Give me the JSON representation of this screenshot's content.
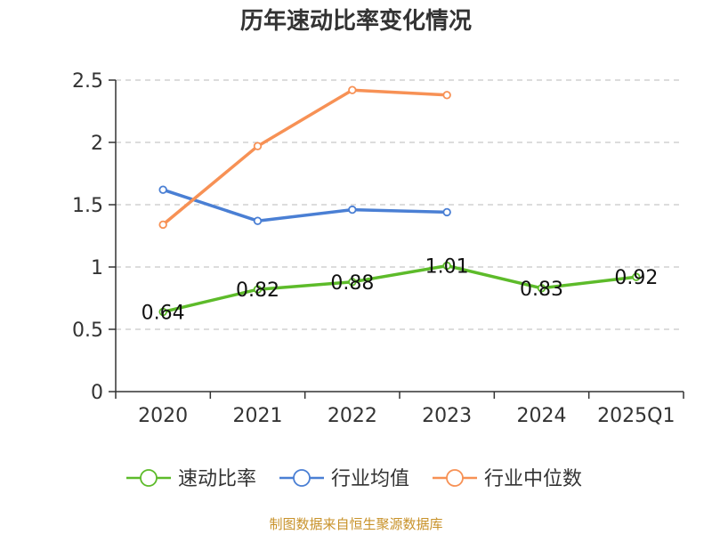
{
  "chart_data": {
    "type": "line",
    "title": "历年速动比率变化情况",
    "categories": [
      "2020",
      "2021",
      "2022",
      "2023",
      "2024",
      "2025Q1"
    ],
    "ylim": [
      0,
      2.5
    ],
    "yticks": [
      0,
      0.5,
      1,
      1.5,
      2,
      2.5
    ],
    "ytick_labels": [
      "0",
      "0.5",
      "1",
      "1.5",
      "2",
      "2.5"
    ],
    "grid": true,
    "legend_position": "bottom",
    "series": [
      {
        "name": "速动比率",
        "color": "#5dbb2a",
        "values": [
          0.64,
          0.82,
          0.88,
          1.01,
          0.83,
          0.92
        ],
        "labels": [
          "0.64",
          "0.82",
          "0.88",
          "1.01",
          "0.83",
          "0.92"
        ],
        "show_labels": true
      },
      {
        "name": "行业均值",
        "color": "#4a7fd4",
        "values": [
          1.62,
          1.37,
          1.46,
          1.44,
          null,
          null
        ],
        "show_labels": false
      },
      {
        "name": "行业中位数",
        "color": "#f79155",
        "values": [
          1.34,
          1.97,
          2.42,
          2.38,
          null,
          null
        ],
        "show_labels": false
      }
    ],
    "source": "制图数据来自恒生聚源数据库"
  }
}
